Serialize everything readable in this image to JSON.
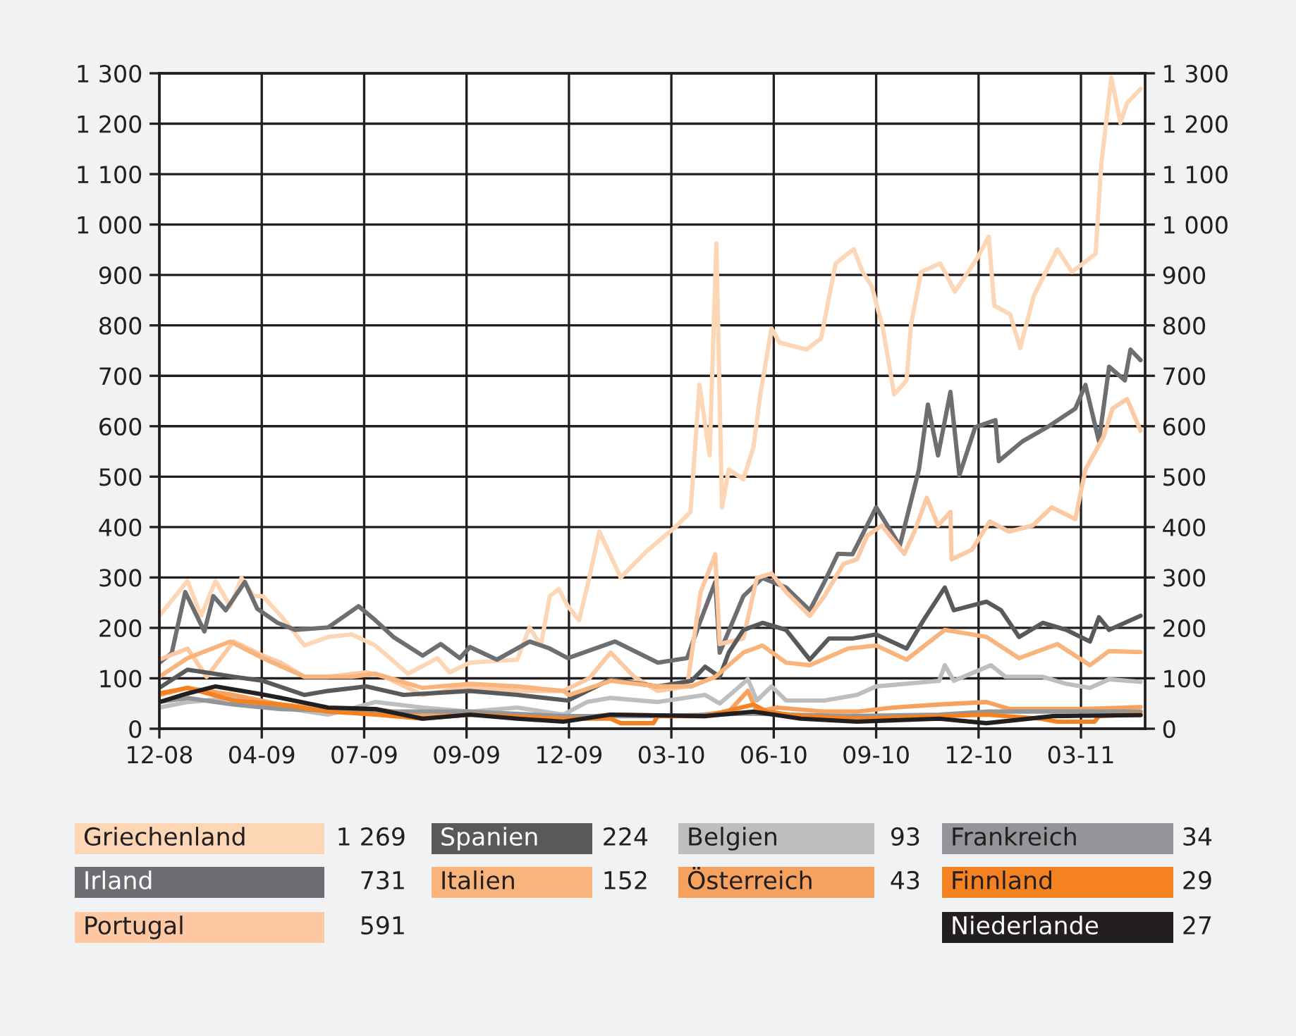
{
  "chart_data": {
    "type": "line",
    "xlim": [
      "2008-12-31",
      "2011-05-26"
    ],
    "xticks": [
      {
        "value": "2008-12-31",
        "label": "12-08"
      },
      {
        "value": "2009-04-01",
        "label": "04-09"
      },
      {
        "value": "2009-07-01",
        "label": "07-09"
      },
      {
        "value": "2009-09-30",
        "label": "09-09"
      },
      {
        "value": "2009-12-30",
        "label": "12-09"
      },
      {
        "value": "2010-03-31",
        "label": "03-10"
      },
      {
        "value": "2010-06-30",
        "label": "06-10"
      },
      {
        "value": "2010-09-29",
        "label": "09-10"
      },
      {
        "value": "2010-12-29",
        "label": "12-10"
      },
      {
        "value": "2011-03-30",
        "label": "03-11"
      }
    ],
    "ylim": [
      0,
      1300
    ],
    "yticks": [
      0,
      100,
      200,
      300,
      400,
      500,
      600,
      700,
      800,
      900,
      {
        "value": 1000,
        "label": "1 000"
      },
      {
        "value": 1100,
        "label": "1 100"
      },
      {
        "value": 1200,
        "label": "1 200"
      },
      {
        "value": 1300,
        "label": "1 300"
      }
    ],
    "y2lim": [
      0,
      1300
    ],
    "y2ticks": [
      0,
      100,
      200,
      300,
      400,
      500,
      600,
      700,
      800,
      900,
      {
        "value": 1000,
        "label": "1 000"
      },
      {
        "value": 1100,
        "label": "1 100"
      },
      {
        "value": 1200,
        "label": "1 200"
      },
      {
        "value": 1300,
        "label": "1 300"
      }
    ],
    "annotations": [
      "1 269",
      "731",
      "591",
      "224",
      "152",
      "93",
      "43",
      "34",
      "29",
      "27"
    ],
    "grid": true,
    "legend": "bottom",
    "marker": "none",
    "line_style": "solid",
    "series": [
      {
        "name": "Griechenland",
        "color": "#fdd6b6",
        "x": [
          "2008-12-31",
          "2009-01-25",
          "2009-02-06",
          "2009-02-19",
          "2009-03-04",
          "2009-03-14",
          "2009-03-25",
          "2009-04-02",
          "2009-04-18",
          "2009-05-09",
          "2009-05-30",
          "2009-06-20",
          "2009-07-11",
          "2009-08-09",
          "2009-09-04",
          "2009-09-15",
          "2009-10-03",
          "2009-11-14",
          "2009-11-25",
          "2009-12-05",
          "2009-12-13",
          "2009-12-21",
          "2009-12-29",
          "2010-01-08",
          "2010-01-17",
          "2010-01-26",
          "2010-02-14",
          "2010-03-08",
          "2010-04-05",
          "2010-04-17",
          "2010-04-25",
          "2010-05-04",
          "2010-05-10",
          "2010-05-15",
          "2010-05-21",
          "2010-06-03",
          "2010-06-12",
          "2010-06-18",
          "2010-06-28",
          "2010-07-05",
          "2010-07-29",
          "2010-08-11",
          "2010-08-24",
          "2010-09-09",
          "2010-09-17",
          "2010-09-25",
          "2010-10-05",
          "2010-10-15",
          "2010-10-26",
          "2010-10-30",
          "2010-11-08",
          "2010-11-25",
          "2010-12-08",
          "2010-12-28",
          "2011-01-07",
          "2011-01-12",
          "2011-01-26",
          "2011-02-04",
          "2011-02-16",
          "2011-03-09",
          "2011-03-22",
          "2011-04-12",
          "2011-04-17",
          "2011-04-26",
          "2011-05-04",
          "2011-05-10",
          "2011-05-22"
        ],
        "values": [
          224,
          293,
          224,
          293,
          243,
          299,
          263,
          263,
          224,
          165,
          182,
          187,
          165,
          109,
          140,
          112,
          131,
          137,
          201,
          165,
          263,
          277,
          243,
          215,
          299,
          391,
          300,
          350,
          403,
          430,
          682,
          542,
          962,
          439,
          514,
          495,
          559,
          663,
          794,
          766,
          752,
          774,
          923,
          951,
          906,
          878,
          794,
          663,
          691,
          802,
          906,
          923,
          867,
          934,
          976,
          839,
          822,
          755,
          858,
          951,
          906,
          942,
          1118,
          1292,
          1202,
          1241,
          1269
        ]
      },
      {
        "name": "Irland",
        "color": "#6d6e71",
        "x": [
          "2008-12-31",
          "2009-01-11",
          "2009-01-23",
          "2009-02-09",
          "2009-02-17",
          "2009-02-28",
          "2009-03-17",
          "2009-03-28",
          "2009-04-15",
          "2009-05-01",
          "2009-05-30",
          "2009-06-26",
          "2009-07-11",
          "2009-07-27",
          "2009-08-22",
          "2009-09-07",
          "2009-09-24",
          "2009-10-03",
          "2009-10-27",
          "2009-11-25",
          "2009-12-12",
          "2009-12-29",
          "2010-02-09",
          "2010-03-19",
          "2010-04-14",
          "2010-04-26",
          "2010-05-09",
          "2010-05-13",
          "2010-06-03",
          "2010-06-20",
          "2010-07-11",
          "2010-08-01",
          "2010-08-14",
          "2010-08-26",
          "2010-09-08",
          "2010-09-29",
          "2010-10-20",
          "2010-11-06",
          "2010-11-14",
          "2010-11-23",
          "2010-12-04",
          "2010-12-12",
          "2010-12-26",
          "2011-01-13",
          "2011-01-16",
          "2011-02-06",
          "2011-02-28",
          "2011-03-25",
          "2011-04-03",
          "2011-04-15",
          "2011-04-24",
          "2011-05-08",
          "2011-05-13",
          "2011-05-22"
        ],
        "values": [
          131,
          150,
          271,
          193,
          263,
          235,
          291,
          238,
          210,
          196,
          201,
          243,
          215,
          182,
          145,
          168,
          140,
          162,
          137,
          173,
          160,
          140,
          173,
          131,
          140,
          215,
          291,
          151,
          263,
          299,
          280,
          235,
          291,
          347,
          346,
          439,
          363,
          514,
          643,
          542,
          668,
          503,
          598,
          612,
          531,
          570,
          598,
          635,
          682,
          570,
          718,
          691,
          752,
          731
        ]
      },
      {
        "name": "Portugal",
        "color": "#fcc9a2",
        "x": [
          "2008-12-31",
          "2009-01-25",
          "2009-02-11",
          "2009-03-07",
          "2009-04-02",
          "2009-04-18",
          "2009-05-09",
          "2009-05-30",
          "2009-07-03",
          "2009-07-19",
          "2009-08-22",
          "2009-10-03",
          "2009-11-14",
          "2009-12-25",
          "2010-01-17",
          "2010-02-05",
          "2010-02-26",
          "2010-03-19",
          "2010-04-14",
          "2010-04-26",
          "2010-05-09",
          "2010-05-13",
          "2010-06-03",
          "2010-06-15",
          "2010-06-28",
          "2010-07-11",
          "2010-08-01",
          "2010-08-14",
          "2010-08-31",
          "2010-09-12",
          "2010-09-21",
          "2010-10-04",
          "2010-10-24",
          "2010-11-02",
          "2010-11-13",
          "2010-11-23",
          "2010-12-04",
          "2010-12-05",
          "2010-12-23",
          "2011-01-08",
          "2011-01-25",
          "2011-02-15",
          "2011-03-04",
          "2011-03-25",
          "2011-04-03",
          "2011-04-19",
          "2011-04-27",
          "2011-05-10",
          "2011-05-22"
        ],
        "values": [
          137,
          159,
          103,
          173,
          145,
          131,
          103,
          103,
          112,
          103,
          67,
          84,
          75,
          75,
          100,
          151,
          103,
          75,
          84,
          271,
          346,
          168,
          179,
          299,
          308,
          271,
          224,
          263,
          327,
          336,
          383,
          403,
          347,
          391,
          458,
          403,
          430,
          336,
          355,
          411,
          391,
          403,
          439,
          416,
          514,
          579,
          635,
          654,
          591
        ]
      },
      {
        "name": "Spanien",
        "color": "#58595b",
        "x": [
          "2008-12-31",
          "2009-01-25",
          "2009-02-15",
          "2009-03-07",
          "2009-04-02",
          "2009-05-09",
          "2009-05-30",
          "2009-07-03",
          "2009-08-05",
          "2009-10-03",
          "2009-11-14",
          "2009-12-29",
          "2010-02-05",
          "2010-03-19",
          "2010-04-18",
          "2010-04-30",
          "2010-05-13",
          "2010-05-21",
          "2010-06-03",
          "2010-06-20",
          "2010-07-11",
          "2010-08-01",
          "2010-08-18",
          "2010-09-08",
          "2010-09-29",
          "2010-10-26",
          "2010-11-10",
          "2010-11-29",
          "2010-12-07",
          "2011-01-05",
          "2011-01-18",
          "2011-02-03",
          "2011-02-24",
          "2011-03-17",
          "2011-04-07",
          "2011-04-15",
          "2011-04-24",
          "2011-05-22"
        ],
        "values": [
          81,
          117,
          110,
          103,
          95,
          67,
          75,
          84,
          67,
          75,
          67,
          56,
          98,
          84,
          95,
          123,
          103,
          151,
          196,
          210,
          196,
          137,
          179,
          179,
          187,
          159,
          215,
          280,
          235,
          252,
          235,
          182,
          210,
          196,
          173,
          221,
          196,
          224
        ]
      },
      {
        "name": "Italien",
        "color": "#f9b47c",
        "x": [
          "2008-12-31",
          "2009-01-25",
          "2009-03-04",
          "2009-04-02",
          "2009-05-09",
          "2009-06-20",
          "2009-07-11",
          "2009-08-22",
          "2009-10-03",
          "2009-11-14",
          "2009-12-25",
          "2009-12-30",
          "2010-02-05",
          "2010-03-19",
          "2010-04-18",
          "2010-05-09",
          "2010-06-03",
          "2010-06-20",
          "2010-07-11",
          "2010-08-01",
          "2010-09-04",
          "2010-09-29",
          "2010-10-26",
          "2010-11-29",
          "2011-01-05",
          "2011-02-03",
          "2011-03-09",
          "2011-04-07",
          "2011-04-24",
          "2011-05-22"
        ],
        "values": [
          103,
          140,
          173,
          140,
          103,
          103,
          109,
          81,
          89,
          84,
          75,
          67,
          95,
          84,
          84,
          103,
          151,
          165,
          131,
          126,
          159,
          165,
          137,
          196,
          182,
          140,
          168,
          126,
          154,
          152
        ]
      },
      {
        "name": "Belgien",
        "color": "#bcbec0",
        "x": [
          "2008-12-31",
          "2009-01-25",
          "2009-03-07",
          "2009-04-18",
          "2009-05-30",
          "2009-07-11",
          "2009-08-22",
          "2009-10-03",
          "2009-11-14",
          "2009-12-25",
          "2010-01-15",
          "2010-02-05",
          "2010-03-19",
          "2010-04-30",
          "2010-05-13",
          "2010-06-07",
          "2010-06-15",
          "2010-06-28",
          "2010-07-11",
          "2010-08-14",
          "2010-09-12",
          "2010-09-29",
          "2010-11-24",
          "2010-11-29",
          "2010-12-07",
          "2011-01-09",
          "2011-01-22",
          "2011-02-24",
          "2011-03-17",
          "2011-04-07",
          "2011-04-24",
          "2011-05-22"
        ],
        "values": [
          42,
          53,
          61,
          42,
          28,
          53,
          42,
          34,
          42,
          28,
          53,
          61,
          53,
          67,
          50,
          98,
          56,
          84,
          56,
          56,
          67,
          84,
          95,
          126,
          95,
          126,
          103,
          103,
          89,
          81,
          98,
          93
        ]
      },
      {
        "name": "Österreich",
        "color": "#f7a15e",
        "x": [
          "2008-12-31",
          "2009-01-25",
          "2009-03-07",
          "2009-04-18",
          "2009-05-30",
          "2009-07-11",
          "2009-08-22",
          "2009-10-03",
          "2009-12-25",
          "2010-02-05",
          "2010-04-18",
          "2010-05-21",
          "2010-06-07",
          "2010-06-15",
          "2010-07-03",
          "2010-08-14",
          "2010-09-12",
          "2010-10-14",
          "2010-11-24",
          "2011-01-05",
          "2011-01-26",
          "2011-03-30",
          "2011-05-22"
        ],
        "values": [
          67,
          81,
          67,
          48,
          39,
          39,
          25,
          28,
          20,
          28,
          25,
          34,
          75,
          34,
          42,
          34,
          34,
          42,
          48,
          53,
          39,
          39,
          43
        ]
      },
      {
        "name": "Frankreich",
        "color": "#939598",
        "x": [
          "2008-12-31",
          "2009-01-25",
          "2009-03-07",
          "2009-04-18",
          "2009-07-11",
          "2009-10-03",
          "2009-12-25",
          "2010-03-19",
          "2010-06-07",
          "2010-09-02",
          "2010-11-24",
          "2011-01-05",
          "2011-05-22"
        ],
        "values": [
          53,
          61,
          48,
          39,
          34,
          34,
          25,
          25,
          30,
          25,
          28,
          34,
          34
        ]
      },
      {
        "name": "Finnland",
        "color": "#f58220",
        "x": [
          "2008-12-31",
          "2009-01-25",
          "2009-03-07",
          "2009-04-18",
          "2009-05-30",
          "2009-07-11",
          "2009-08-22",
          "2009-10-03",
          "2009-12-25",
          "2010-02-05",
          "2010-02-14",
          "2010-03-15",
          "2010-03-19",
          "2010-04-30",
          "2010-06-12",
          "2010-06-24",
          "2010-07-24",
          "2010-09-12",
          "2010-11-24",
          "2011-01-05",
          "2011-02-22",
          "2011-03-09",
          "2011-04-11",
          "2011-04-15",
          "2011-05-22"
        ],
        "values": [
          70,
          81,
          56,
          48,
          34,
          28,
          20,
          28,
          20,
          20,
          11,
          11,
          25,
          25,
          48,
          34,
          25,
          20,
          25,
          28,
          20,
          14,
          14,
          25,
          29
        ]
      },
      {
        "name": "Niederlande",
        "color": "#231f20",
        "x": [
          "2008-12-31",
          "2009-01-25",
          "2009-02-19",
          "2009-03-28",
          "2009-04-18",
          "2009-05-30",
          "2009-07-11",
          "2009-08-22",
          "2009-10-03",
          "2009-11-14",
          "2009-12-25",
          "2010-02-05",
          "2010-04-30",
          "2010-06-12",
          "2010-07-24",
          "2010-09-12",
          "2010-11-24",
          "2011-01-05",
          "2011-03-05",
          "2011-05-22"
        ],
        "values": [
          53,
          70,
          84,
          70,
          61,
          42,
          39,
          20,
          28,
          20,
          14,
          28,
          25,
          34,
          20,
          14,
          20,
          11,
          25,
          27
        ]
      }
    ]
  }
}
